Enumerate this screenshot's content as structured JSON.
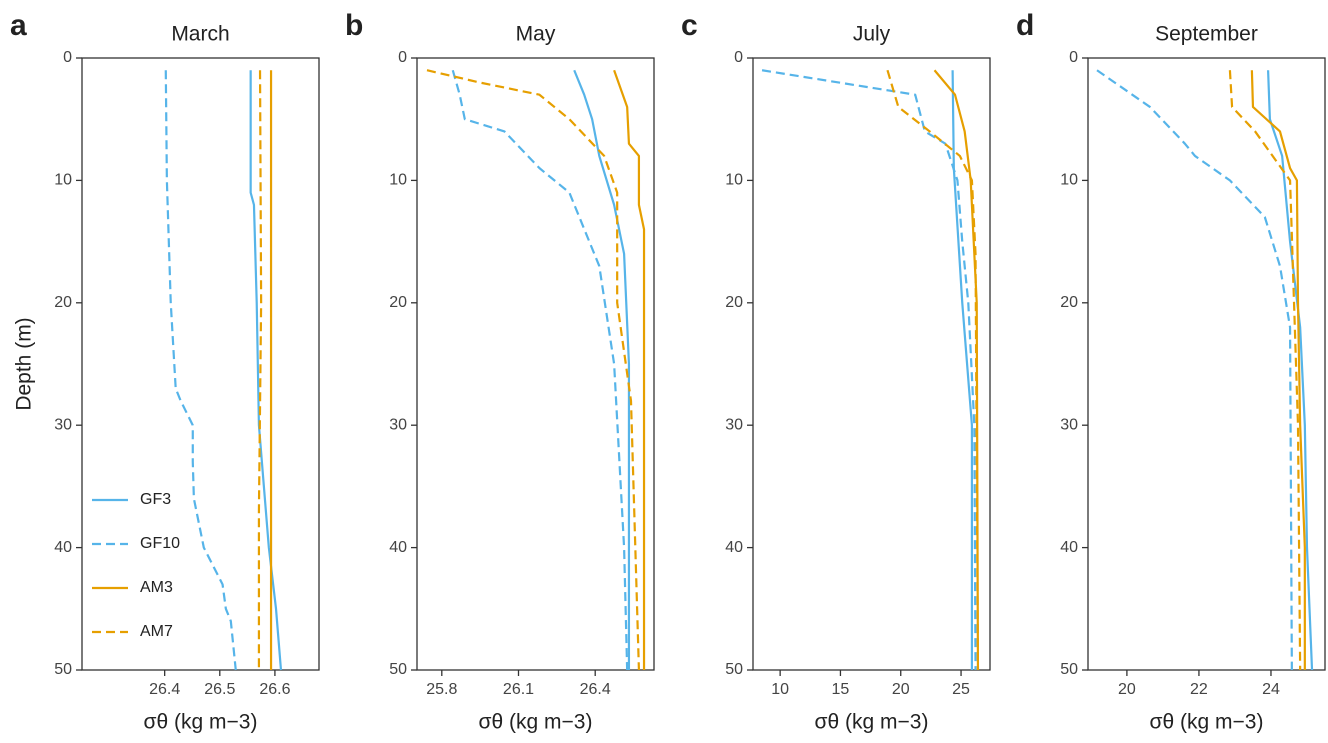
{
  "chart_data": [
    {
      "type": "line",
      "panel_label": "a",
      "title": "March",
      "xlabel": "σθ (kg m−3)",
      "ylabel": "Depth (m)",
      "xlim": [
        26.25,
        26.68
      ],
      "xticks": [
        26.4,
        26.5,
        26.6
      ],
      "ylim": [
        0,
        50
      ],
      "yticks": [
        0,
        10,
        20,
        30,
        40,
        50
      ],
      "y_inverted": true,
      "legend": "lower left",
      "series": [
        {
          "name": "GF3",
          "color": "#56B4E9",
          "linestyle": "solid",
          "x": [
            26.556,
            26.556,
            26.562,
            26.567,
            26.571,
            26.589,
            26.602,
            26.611
          ],
          "values": [
            1,
            11,
            12,
            20,
            30,
            40,
            45,
            50
          ]
        },
        {
          "name": "GF10",
          "color": "#56B4E9",
          "linestyle": "dashed",
          "x": [
            26.402,
            26.404,
            26.411,
            26.42,
            26.429,
            26.451,
            26.451,
            26.453,
            26.471,
            26.505,
            26.511,
            26.52,
            26.529
          ],
          "values": [
            1,
            10,
            20,
            27,
            28,
            30,
            33,
            36,
            40,
            43,
            45,
            46,
            50
          ]
        },
        {
          "name": "AM3",
          "color": "#E69F00",
          "linestyle": "solid",
          "x": [
            26.593,
            26.593
          ],
          "values": [
            1,
            50
          ]
        },
        {
          "name": "AM7",
          "color": "#E69F00",
          "linestyle": "dashed",
          "x": [
            26.573,
            26.575,
            26.571,
            26.571
          ],
          "values": [
            1,
            20,
            37,
            50
          ]
        }
      ]
    },
    {
      "type": "line",
      "panel_label": "b",
      "title": "May",
      "xlabel": "σθ (kg m−3)",
      "xlim": [
        25.703,
        26.63
      ],
      "xticks": [
        25.8,
        26.1,
        26.4
      ],
      "ylim": [
        0,
        50
      ],
      "yticks": [
        0,
        10,
        20,
        30,
        40,
        50
      ],
      "y_inverted": true,
      "series": [
        {
          "name": "GF3",
          "color": "#56B4E9",
          "linestyle": "solid",
          "x": [
            26.318,
            26.357,
            26.388,
            26.416,
            26.474,
            26.513,
            26.532,
            26.532
          ],
          "values": [
            1,
            3,
            5,
            8,
            12,
            16,
            25,
            50
          ]
        },
        {
          "name": "GF10",
          "color": "#56B4E9",
          "linestyle": "dashed",
          "x": [
            25.843,
            25.87,
            25.89,
            26.045,
            26.182,
            26.299,
            26.416,
            26.474,
            26.513,
            26.525
          ],
          "values": [
            1,
            3,
            5,
            6,
            9,
            11,
            17,
            25,
            40,
            50
          ]
        },
        {
          "name": "AM3",
          "color": "#E69F00",
          "linestyle": "solid",
          "x": [
            26.474,
            26.525,
            26.532,
            26.571,
            26.571,
            26.591,
            26.591
          ],
          "values": [
            1,
            4,
            7,
            8,
            12,
            14,
            50
          ]
        },
        {
          "name": "AM7",
          "color": "#E69F00",
          "linestyle": "dashed",
          "x": [
            25.742,
            25.948,
            26.182,
            26.299,
            26.435,
            26.486,
            26.486,
            26.54,
            26.571
          ],
          "values": [
            1,
            2,
            3,
            5,
            8,
            11,
            20,
            28,
            50
          ]
        }
      ]
    },
    {
      "type": "line",
      "panel_label": "c",
      "title": "July",
      "xlabel": "σθ (kg m−3)",
      "xlim": [
        7.75,
        27.4
      ],
      "xticks": [
        10,
        15,
        20,
        25
      ],
      "ylim": [
        0,
        50
      ],
      "yticks": [
        0,
        10,
        20,
        30,
        40,
        50
      ],
      "y_inverted": true,
      "series": [
        {
          "name": "GF3",
          "color": "#56B4E9",
          "linestyle": "solid",
          "x": [
            24.3,
            24.4,
            25.1,
            25.9,
            25.9
          ],
          "values": [
            1,
            9,
            20,
            30,
            50
          ]
        },
        {
          "name": "GF10",
          "color": "#56B4E9",
          "linestyle": "dashed",
          "x": [
            8.5,
            21.2,
            22.0,
            23.7,
            24.7,
            25.1,
            25.6,
            26.1,
            26.2
          ],
          "values": [
            1,
            3,
            6,
            7,
            10,
            15,
            20,
            30,
            50
          ]
        },
        {
          "name": "AM3",
          "color": "#E69F00",
          "linestyle": "solid",
          "x": [
            22.8,
            24.5,
            25.3,
            25.8,
            26.3,
            26.4
          ],
          "values": [
            1,
            3,
            6,
            10,
            20,
            50
          ]
        },
        {
          "name": "AM7",
          "color": "#E69F00",
          "linestyle": "dashed",
          "x": [
            18.9,
            19.8,
            22.4,
            24.9,
            25.9,
            26.2,
            26.4
          ],
          "values": [
            1,
            4,
            6,
            8,
            10,
            16,
            50
          ]
        }
      ]
    },
    {
      "type": "line",
      "panel_label": "d",
      "title": "September",
      "xlabel": "σθ (kg m−3)",
      "xlim": [
        18.92,
        25.5
      ],
      "xticks": [
        20,
        22,
        24
      ],
      "ylim": [
        0,
        50
      ],
      "yticks": [
        0,
        10,
        20,
        30,
        40,
        50
      ],
      "y_inverted": true,
      "series": [
        {
          "name": "GF3",
          "color": "#56B4E9",
          "linestyle": "solid",
          "x": [
            23.92,
            23.97,
            24.31,
            24.53,
            24.81,
            24.94,
            25.0,
            25.14
          ],
          "values": [
            1,
            5,
            8,
            15,
            22,
            30,
            40,
            50
          ]
        },
        {
          "name": "GF10",
          "color": "#56B4E9",
          "linestyle": "dashed",
          "x": [
            19.17,
            20.64,
            21.61,
            21.89,
            22.86,
            23.83,
            24.25,
            24.53,
            24.58
          ],
          "values": [
            1,
            4,
            7,
            8,
            10,
            13,
            17,
            22,
            50
          ]
        },
        {
          "name": "AM3",
          "color": "#E69F00",
          "linestyle": "solid",
          "x": [
            23.47,
            23.5,
            24.25,
            24.53,
            24.72,
            24.75,
            24.81,
            24.94,
            24.94
          ],
          "values": [
            1,
            4,
            6,
            9,
            10,
            20,
            30,
            40,
            50
          ]
        },
        {
          "name": "AM7",
          "color": "#E69F00",
          "linestyle": "dashed",
          "x": [
            22.86,
            22.92,
            23.56,
            24.53,
            24.75,
            24.81
          ],
          "values": [
            1,
            4,
            6,
            10,
            30,
            50
          ]
        }
      ]
    }
  ]
}
